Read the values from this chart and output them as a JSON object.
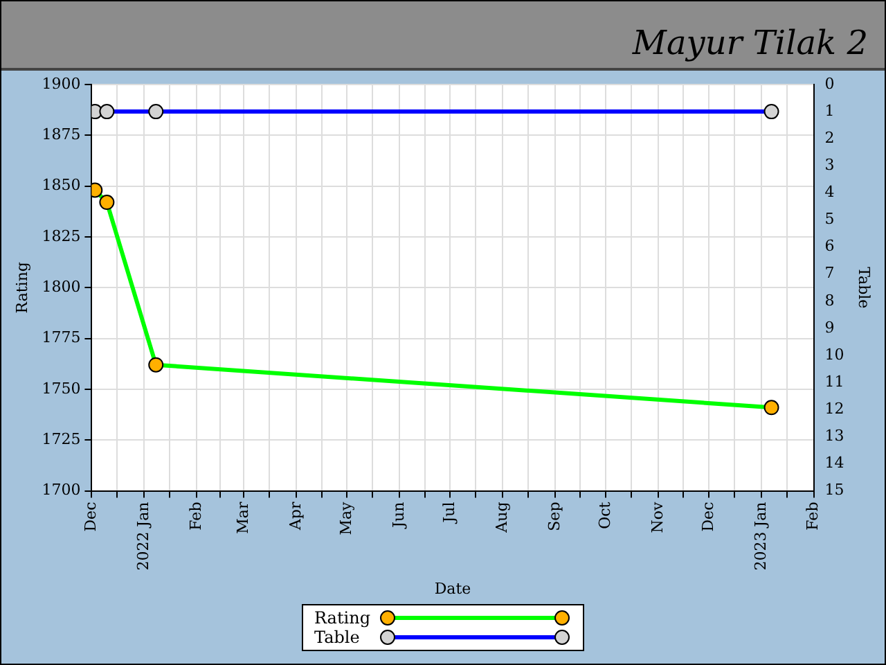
{
  "chart_data": {
    "type": "line",
    "title": "Mayur Tilak 2",
    "xlabel": "Date",
    "ylabel": "Rating",
    "y2label": "Table",
    "series": [
      {
        "name": "Rating",
        "color": "#00ff00",
        "x": [
          "2021-12-03",
          "2021-12-10",
          "2022-01-08",
          "2023-01-07"
        ],
        "values": [
          1848,
          1842,
          1762,
          1741
        ]
      },
      {
        "name": "Table",
        "color": "#0000ff",
        "axis": "y2",
        "x": [
          "2021-12-03",
          "2021-12-10",
          "2022-01-08",
          "2023-01-07"
        ],
        "values": [
          1,
          1,
          1,
          1
        ]
      }
    ],
    "xlim": [
      "2021-12-01",
      "2023-02-01"
    ],
    "xticks": [
      {
        "value": "2021-12-01",
        "label": "Dec"
      },
      {
        "value": "2021-12-16",
        "label": null
      },
      {
        "value": "2022-01-01",
        "label": "2022 Jan"
      },
      {
        "value": "2022-01-16",
        "label": null
      },
      {
        "value": "2022-02-01",
        "label": "Feb"
      },
      {
        "value": "2022-02-15",
        "label": null
      },
      {
        "value": "2022-03-01",
        "label": "Mar"
      },
      {
        "value": "2022-03-16",
        "label": null
      },
      {
        "value": "2022-04-01",
        "label": "Apr"
      },
      {
        "value": "2022-04-16",
        "label": null
      },
      {
        "value": "2022-05-01",
        "label": "May"
      },
      {
        "value": "2022-05-16",
        "label": null
      },
      {
        "value": "2022-06-01",
        "label": "Jun"
      },
      {
        "value": "2022-06-16",
        "label": null
      },
      {
        "value": "2022-07-01",
        "label": "Jul"
      },
      {
        "value": "2022-07-16",
        "label": null
      },
      {
        "value": "2022-08-01",
        "label": "Aug"
      },
      {
        "value": "2022-08-16",
        "label": null
      },
      {
        "value": "2022-09-01",
        "label": "Sep"
      },
      {
        "value": "2022-09-16",
        "label": null
      },
      {
        "value": "2022-10-01",
        "label": "Oct"
      },
      {
        "value": "2022-10-16",
        "label": null
      },
      {
        "value": "2022-11-01",
        "label": "Nov"
      },
      {
        "value": "2022-11-16",
        "label": null
      },
      {
        "value": "2022-12-01",
        "label": "Dec"
      },
      {
        "value": "2022-12-16",
        "label": null
      },
      {
        "value": "2023-01-01",
        "label": "2023 Jan"
      },
      {
        "value": "2023-01-16",
        "label": null
      },
      {
        "value": "2023-02-01",
        "label": "Feb"
      }
    ],
    "ylim": [
      1700,
      1900
    ],
    "yticks": [
      1700,
      1725,
      1750,
      1775,
      1800,
      1825,
      1850,
      1875,
      1900
    ],
    "y2lim": [
      15,
      0
    ],
    "y2ticks": [
      0,
      1,
      2,
      3,
      4,
      5,
      6,
      7,
      8,
      9,
      10,
      11,
      12,
      13,
      14,
      15
    ],
    "grid": true,
    "legend": "bottom",
    "marker": "circle",
    "line_style": "solid"
  }
}
